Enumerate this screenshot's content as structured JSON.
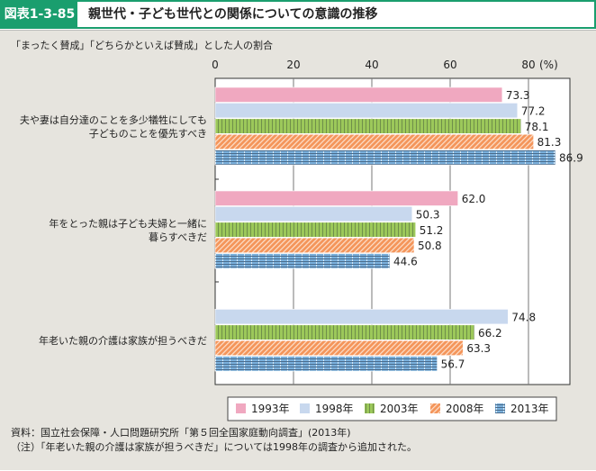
{
  "header": {
    "label": "図表1-3-85",
    "title": "親世代・子ども世代との関係についての意識の推移"
  },
  "subtitle": "「まったく賛成」「どちらかといえば賛成」とした人の割合",
  "notes": [
    "資料：国立社会保障・人口問題研究所「第５回全国家庭動向調査」(2013年)",
    "（注）「年老いた親の介護は家族が担うべきだ」については1998年の調査から追加された。"
  ],
  "chart_data": {
    "type": "bar",
    "orientation": "horizontal",
    "unit": "(%)",
    "xlim": [
      0,
      90
    ],
    "xticks": [
      0,
      20,
      40,
      60,
      80
    ],
    "grid": true,
    "legend_placement": "bottom",
    "categories": [
      [
        "夫や妻は自分達のことを多少犠牲にしても",
        "子どものことを優先すべき"
      ],
      [
        "年をとった親は子ども夫婦と一緒に",
        "暮らすべきだ"
      ],
      [
        "年老いた親の介護は家族が担うべきだ"
      ]
    ],
    "series": [
      {
        "name": "1993年",
        "color": "#f0a8c0",
        "pattern": "solid",
        "values": [
          73.3,
          62.0,
          null
        ]
      },
      {
        "name": "1998年",
        "color": "#c8d8ee",
        "pattern": "solid",
        "values": [
          77.2,
          50.3,
          74.8
        ]
      },
      {
        "name": "2003年",
        "color": "#9cc85a",
        "pattern": "vertical",
        "values": [
          78.1,
          51.2,
          66.2
        ]
      },
      {
        "name": "2008年",
        "color": "#f4955a",
        "pattern": "diagonal",
        "values": [
          81.3,
          50.8,
          63.3
        ]
      },
      {
        "name": "2013年",
        "color": "#7ab0dc",
        "pattern": "horizontal",
        "values": [
          86.9,
          44.6,
          56.7
        ]
      }
    ]
  }
}
